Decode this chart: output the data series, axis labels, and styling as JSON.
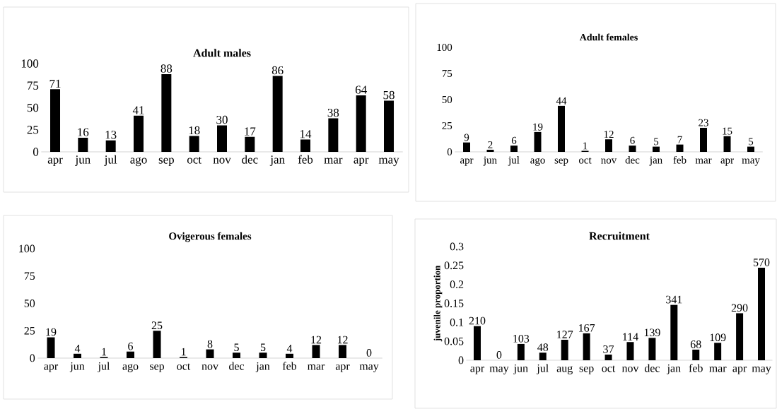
{
  "chart_data": [
    {
      "type": "bar",
      "title": "Adult males",
      "categories": [
        "apr",
        "jun",
        "jul",
        "ago",
        "sep",
        "oct",
        "nov",
        "dec",
        "jan",
        "feb",
        "mar",
        "apr",
        "may"
      ],
      "values": [
        71,
        16,
        13,
        41,
        88,
        18,
        30,
        17,
        86,
        14,
        38,
        64,
        58
      ],
      "color": "#000000",
      "ylim": [
        0,
        100
      ],
      "yticks": [
        0,
        25,
        50,
        75,
        100
      ],
      "data_labels": true
    },
    {
      "type": "bar",
      "title": "Adult females",
      "categories": [
        "apr",
        "jun",
        "jul",
        "ago",
        "sep",
        "oct",
        "nov",
        "dec",
        "jan",
        "feb",
        "mar",
        "apr",
        "may"
      ],
      "values": [
        9,
        2,
        6,
        19,
        44,
        1,
        12,
        6,
        5,
        7,
        23,
        15,
        5
      ],
      "color": "#000000",
      "ylim": [
        0,
        100
      ],
      "yticks": [
        0,
        25,
        50,
        75,
        100
      ],
      "data_labels": true
    },
    {
      "type": "bar",
      "title": "Ovigerous females",
      "categories": [
        "apr",
        "jun",
        "jul",
        "ago",
        "sep",
        "oct",
        "nov",
        "dec",
        "jan",
        "feb",
        "mar",
        "apr",
        "may"
      ],
      "values": [
        19,
        4,
        1,
        6,
        25,
        1,
        8,
        5,
        5,
        4,
        12,
        12,
        0
      ],
      "color": "#000000",
      "ylim": [
        0,
        100
      ],
      "yticks": [
        0,
        25,
        50,
        75,
        100
      ],
      "data_labels": true
    },
    {
      "type": "bar",
      "title": "Recruitment",
      "ylabel": "juvenile proportion",
      "categories": [
        "apr",
        "may",
        "jun",
        "jul",
        "aug",
        "sep",
        "oct",
        "nov",
        "dec",
        "jan",
        "feb",
        "mar",
        "apr",
        "may"
      ],
      "values": [
        0.09,
        0,
        0.043,
        0.02,
        0.054,
        0.071,
        0.015,
        0.048,
        0.059,
        0.146,
        0.028,
        0.046,
        0.124,
        0.244
      ],
      "annotations": [
        {
          "text": "210",
          "x": "apr",
          "y": 0.09
        },
        {
          "text": "0",
          "x": "may",
          "y": 0
        },
        {
          "text": "103",
          "x": "jun",
          "y": 0.043
        },
        {
          "text": "48",
          "x": "jul",
          "y": 0.02
        },
        {
          "text": "127",
          "x": "aug",
          "y": 0.054
        },
        {
          "text": "167",
          "x": "sep",
          "y": 0.071
        },
        {
          "text": "37",
          "x": "oct",
          "y": 0.015
        },
        {
          "text": "114",
          "x": "nov",
          "y": 0.048
        },
        {
          "text": "139",
          "x": "dec",
          "y": 0.059
        },
        {
          "text": "341",
          "x": "jan",
          "y": 0.146
        },
        {
          "text": "68",
          "x": "feb",
          "y": 0.028
        },
        {
          "text": "109",
          "x": "mar",
          "y": 0.046
        },
        "290",
        "570"
      ],
      "color": "#000000",
      "ylim": [
        0,
        0.3
      ],
      "yticks": [
        0,
        0.05,
        0.1,
        0.15,
        0.2,
        0.25,
        0.3
      ]
    }
  ]
}
